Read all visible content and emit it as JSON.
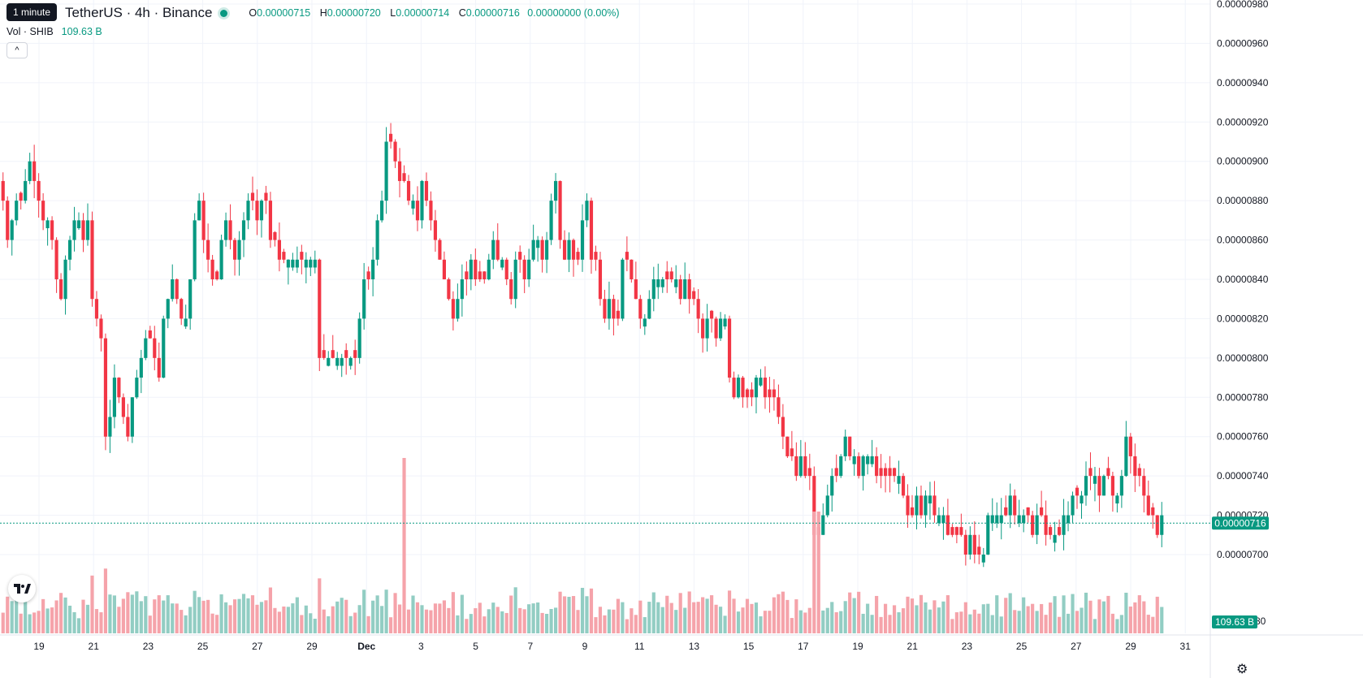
{
  "header": {
    "tooltip": "1 minute",
    "symbol": "TetherUS · 4h · Binance",
    "ohlc": {
      "o_label": "O",
      "o": "0.00000715",
      "h_label": "H",
      "h": "0.00000720",
      "l_label": "L",
      "l": "0.00000714",
      "c_label": "C",
      "c": "0.00000716",
      "change": "0.00000000 (0.00%)"
    },
    "volume_label": "Vol · SHIB",
    "volume_value": "109.63 B"
  },
  "colors": {
    "up": "#089981",
    "down": "#F23645",
    "up_vol": "#92CDC3",
    "down_vol": "#F5A3AA",
    "grid": "#F0F3FA"
  },
  "icons": [
    "tradingview-logo-icon",
    "settings-icon",
    "chevron-up-icon"
  ],
  "chart_data": {
    "type": "candlestick",
    "x_tick_labels": [
      "19",
      "21",
      "23",
      "25",
      "27",
      "29",
      "Dec",
      "3",
      "5",
      "7",
      "9",
      "11",
      "13",
      "15",
      "17",
      "19",
      "21",
      "23",
      "25",
      "27",
      "29",
      "31"
    ],
    "y_tick_labels": [
      "0.00000980",
      "0.00000960",
      "0.00000940",
      "0.00000920",
      "0.00000900",
      "0.00000880",
      "0.00000860",
      "0.00000840",
      "0.00000820",
      "0.00000800",
      "0.00000780",
      "0.00000760",
      "0.00000740",
      "0.00000720",
      "0.00000700",
      "80"
    ],
    "y_ticks": [
      9.8e-06,
      9.6e-06,
      9.4e-06,
      9.2e-06,
      9e-06,
      8.8e-06,
      8.6e-06,
      8.4e-06,
      8.2e-06,
      8e-06,
      7.8e-06,
      7.6e-06,
      7.4e-06,
      7.2e-06,
      7e-06
    ],
    "ylim": [
      6.92e-06,
      9.81e-06
    ],
    "last_price_label": "0.00000716",
    "last_price": 7.16e-06,
    "last_volume_label": "109.63 B",
    "closes": [
      8.8e-06,
      8.6e-06,
      8.7e-06,
      8.8e-06,
      8.8e-06,
      8.9e-06,
      9e-06,
      8.9e-06,
      8.8e-06,
      8.7e-06,
      8.7e-06,
      8.6e-06,
      8.4e-06,
      8.3e-06,
      8.5e-06,
      8.6e-06,
      8.7e-06,
      8.7e-06,
      8.6e-06,
      8.7e-06,
      8.3e-06,
      8.2e-06,
      8.1e-06,
      7.6e-06,
      7.7e-06,
      7.9e-06,
      7.8e-06,
      7.7e-06,
      7.6e-06,
      7.8e-06,
      7.9e-06,
      8e-06,
      8.1e-06,
      8.1e-06,
      8e-06,
      7.9e-06,
      8.2e-06,
      8.3e-06,
      8.4e-06,
      8.3e-06,
      8.2e-06,
      8.2e-06,
      8.4e-06,
      8.7e-06,
      8.8e-06,
      8.6e-06,
      8.5e-06,
      8.4e-06,
      8.4e-06,
      8.6e-06,
      8.7e-06,
      8.6e-06,
      8.5e-06,
      8.6e-06,
      8.7e-06,
      8.8e-06,
      8.8e-06,
      8.7e-06,
      8.8e-06,
      8.8e-06,
      8.6e-06,
      8.6e-06,
      8.5e-06,
      8.5e-06,
      8.5e-06,
      8.5e-06,
      8.5e-06,
      8.5e-06,
      8.5e-06,
      8.5e-06,
      8.5e-06,
      8e-06,
      8e-06,
      8e-06,
      8e-06,
      8e-06,
      8e-06,
      8e-06,
      8e-06,
      8e-06,
      8.2e-06,
      8.4e-06,
      8.4e-06,
      8.5e-06,
      8.7e-06,
      8.8e-06,
      9.1e-06,
      9.1e-06,
      9e-06,
      8.9e-06,
      8.9e-06,
      8.8e-06,
      8.8e-06,
      8.7e-06,
      8.9e-06,
      8.8e-06,
      8.7e-06,
      8.6e-06,
      8.5e-06,
      8.4e-06,
      8.3e-06,
      8.2e-06,
      8.3e-06,
      8.4e-06,
      8.4e-06,
      8.5e-06,
      8.4e-06,
      8.4e-06,
      8.4e-06,
      8.5e-06,
      8.6e-06,
      8.5e-06,
      8.5e-06,
      8.4e-06,
      8.3e-06,
      8.5e-06,
      8.5e-06,
      8.4e-06,
      8.5e-06,
      8.6e-06,
      8.6e-06,
      8.5e-06,
      8.6e-06,
      8.8e-06,
      8.9e-06,
      8.6e-06,
      8.5e-06,
      8.6e-06,
      8.5e-06,
      8.5e-06,
      8.7e-06,
      8.8e-06,
      8.5e-06,
      8.5e-06,
      8.3e-06,
      8.2e-06,
      8.3e-06,
      8.2e-06,
      8.2e-06,
      8.5e-06,
      8.5e-06,
      8.4e-06,
      8.3e-06,
      8.2e-06,
      8.2e-06,
      8.3e-06,
      8.4e-06,
      8.4e-06,
      8.4e-06,
      8.4e-06,
      8.4e-06,
      8.4e-06,
      8.3e-06,
      8.4e-06,
      8.3e-06,
      8.3e-06,
      8.2e-06,
      8.1e-06,
      8.2e-06,
      8.2e-06,
      8.1e-06,
      8.2e-06,
      8.2e-06,
      7.9e-06,
      7.8e-06,
      7.9e-06,
      7.8e-06,
      7.8e-06,
      7.8e-06,
      7.9e-06,
      7.9e-06,
      7.8e-06,
      7.8e-06,
      7.8e-06,
      7.7e-06,
      7.6e-06,
      7.5e-06,
      7.5e-06,
      7.4e-06,
      7.5e-06,
      7.4e-06,
      7.4e-06,
      7.1e-06,
      7.1e-06,
      7.2e-06,
      7.3e-06,
      7.4e-06,
      7.4e-06,
      7.5e-06,
      7.6e-06,
      7.5e-06,
      7.5e-06,
      7.4e-06,
      7.5e-06,
      7.5e-06,
      7.5e-06,
      7.4e-06,
      7.4e-06,
      7.4e-06,
      7.4e-06,
      7.4e-06,
      7.4e-06,
      7.3e-06,
      7.2e-06,
      7.2e-06,
      7.3e-06,
      7.2e-06,
      7.3e-06,
      7.3e-06,
      7.2e-06,
      7.2e-06,
      7.2e-06,
      7.1e-06,
      7.1e-06,
      7.1e-06,
      7.1e-06,
      7e-06,
      7.1e-06,
      7e-06,
      7e-06,
      7e-06,
      7.2e-06,
      7.2e-06,
      7.2e-06,
      7.2e-06,
      7.2e-06,
      7.3e-06,
      7.2e-06,
      7.2e-06,
      7.2e-06,
      7.2e-06,
      7.1e-06,
      7.2e-06,
      7.2e-06,
      7.1e-06,
      7.1e-06,
      7.1e-06,
      7.1e-06,
      7.2e-06,
      7.2e-06,
      7.3e-06,
      7.3e-06,
      7.3e-06,
      7.4e-06,
      7.4e-06,
      7.4e-06,
      7.3e-06,
      7.4e-06,
      7.4e-06,
      7.3e-06,
      7.3e-06,
      7.4e-06,
      7.6e-06,
      7.5e-06,
      7.4e-06,
      7.4e-06,
      7.3e-06,
      7.2e-06,
      7.2e-06,
      7.1e-06,
      7.2e-06
    ],
    "volume_note": "bars beneath candles; tallest spike near Dec 3 and Dec 18"
  }
}
